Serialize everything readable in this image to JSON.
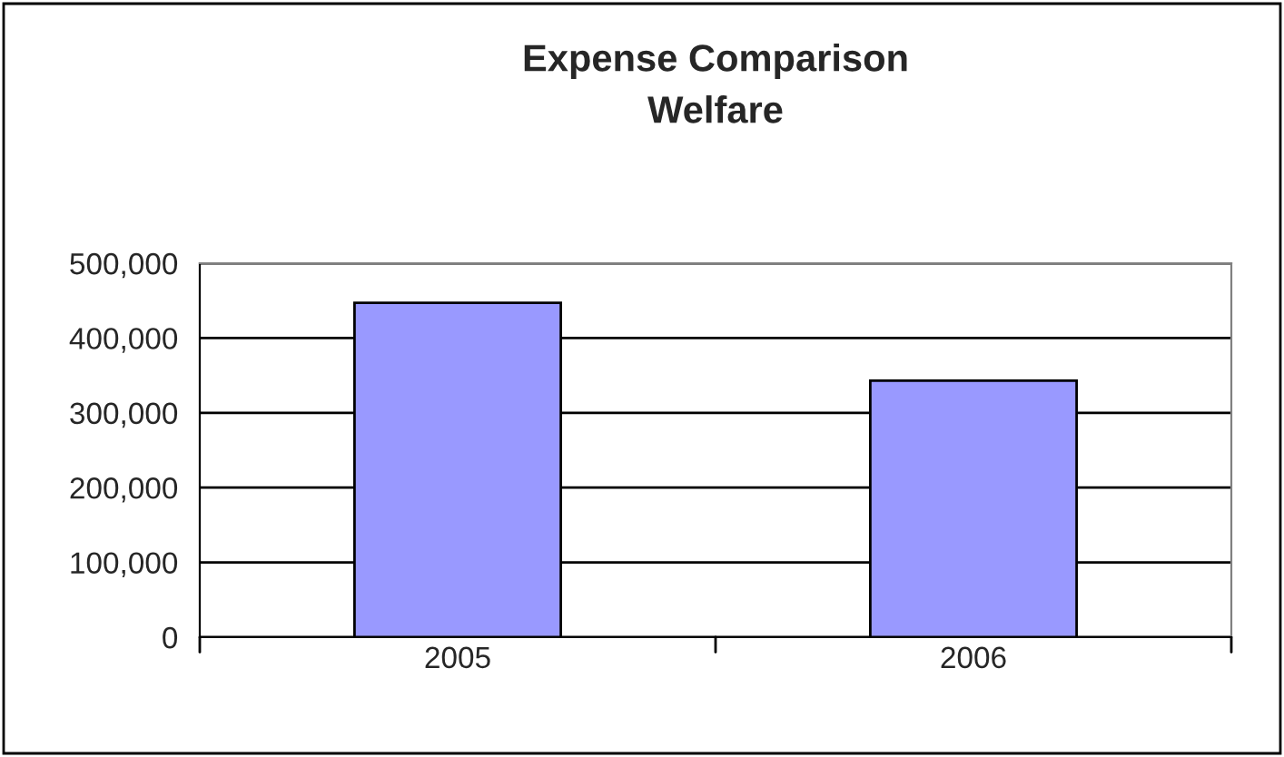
{
  "chart_data": {
    "type": "bar",
    "title": "Expense Comparison\nWelfare",
    "categories": [
      "2005",
      "2006"
    ],
    "values": [
      447000,
      343000
    ],
    "color": "#9999ff",
    "ylim": [
      0,
      500000
    ],
    "yticks": [
      {
        "value": 0,
        "label": "0"
      },
      {
        "value": 100000,
        "label": "100,000"
      },
      {
        "value": 200000,
        "label": "200,000"
      },
      {
        "value": 300000,
        "label": "300,000"
      },
      {
        "value": 400000,
        "label": "400,000"
      },
      {
        "value": 500000,
        "label": "500,000"
      }
    ],
    "grid": "y",
    "legend": false
  }
}
